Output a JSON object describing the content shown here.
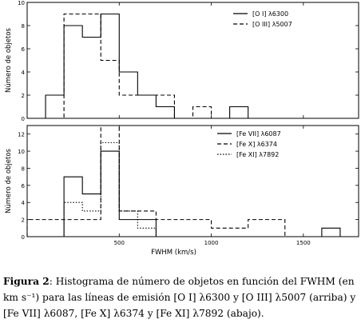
{
  "chart_data": [
    {
      "type": "histogram",
      "position": "top",
      "ylabel": "Número de objetos",
      "xlim": [
        0,
        1800
      ],
      "ylim": [
        0,
        10
      ],
      "yticks": [
        0,
        2,
        4,
        6,
        8,
        10
      ],
      "xticks": [
        500,
        1000,
        1500
      ],
      "show_x_tick_labels": false,
      "bin_width": 100,
      "legend_position": "top-right",
      "series": [
        {
          "name": "[O I] λ6300",
          "style": "solid",
          "bins": [
            [
              100,
              2
            ],
            [
              200,
              8
            ],
            [
              300,
              7
            ],
            [
              400,
              9
            ],
            [
              500,
              4
            ],
            [
              600,
              2
            ],
            [
              700,
              1
            ],
            [
              800,
              0
            ],
            [
              900,
              0
            ],
            [
              1000,
              0
            ],
            [
              1100,
              1
            ],
            [
              1200,
              0
            ]
          ]
        },
        {
          "name": "[O III] λ5007",
          "style": "dashed",
          "bins": [
            [
              100,
              0
            ],
            [
              200,
              9
            ],
            [
              300,
              9
            ],
            [
              400,
              5
            ],
            [
              500,
              2
            ],
            [
              600,
              2
            ],
            [
              700,
              2
            ],
            [
              800,
              0
            ],
            [
              900,
              1
            ],
            [
              1000,
              0
            ]
          ]
        }
      ]
    },
    {
      "type": "histogram",
      "position": "bottom",
      "xlabel": "FWHM (km/s)",
      "ylabel": "Número de objetos",
      "xlim": [
        0,
        1800
      ],
      "ylim": [
        0,
        13
      ],
      "yticks": [
        0,
        2,
        4,
        6,
        8,
        10,
        12
      ],
      "xticks": [
        500,
        1000,
        1500
      ],
      "show_x_tick_labels": true,
      "bin_width": 100,
      "legend_position": "top-right",
      "series": [
        {
          "name": "[Fe VII] λ6087",
          "style": "solid",
          "bins": [
            [
              100,
              0
            ],
            [
              200,
              7
            ],
            [
              300,
              5
            ],
            [
              400,
              10
            ],
            [
              500,
              2
            ],
            [
              600,
              2
            ],
            [
              700,
              0
            ],
            [
              800,
              0
            ],
            [
              900,
              0
            ],
            [
              1000,
              0
            ],
            [
              1100,
              0
            ],
            [
              1200,
              0
            ],
            [
              1300,
              0
            ],
            [
              1400,
              0
            ],
            [
              1500,
              0
            ],
            [
              1600,
              1
            ],
            [
              1700,
              0
            ]
          ]
        },
        {
          "name": "[Fe X] λ6374",
          "style": "dashed",
          "bins": [
            [
              0,
              2
            ],
            [
              100,
              2
            ],
            [
              200,
              2
            ],
            [
              300,
              2
            ],
            [
              400,
              13
            ],
            [
              500,
              3
            ],
            [
              600,
              3
            ],
            [
              700,
              2
            ],
            [
              800,
              2
            ],
            [
              900,
              2
            ],
            [
              1000,
              1
            ],
            [
              1100,
              1
            ],
            [
              1200,
              2
            ],
            [
              1300,
              2
            ],
            [
              1400,
              0
            ]
          ]
        },
        {
          "name": "[Fe XI] λ7892",
          "style": "dotted",
          "bins": [
            [
              100,
              0
            ],
            [
              200,
              4
            ],
            [
              300,
              3
            ],
            [
              400,
              11
            ],
            [
              500,
              3
            ],
            [
              600,
              1
            ],
            [
              700,
              0
            ]
          ]
        }
      ]
    }
  ],
  "caption": {
    "label": "Figura 2",
    "text": ": Histograma de número de objetos en función del FWHM (en km s⁻¹) para las líneas de emisión [O I] λ6300 y [O III] λ5007 (arriba) y [Fe VII] λ6087, [Fe X] λ6374 y [Fe XI] λ7892 (abajo)."
  }
}
